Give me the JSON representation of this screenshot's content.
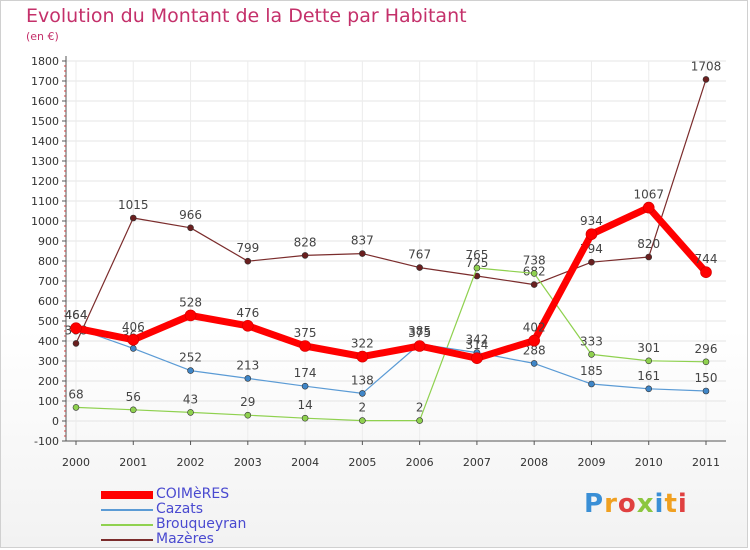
{
  "title": "Evolution du Montant de la Dette par Habitant",
  "subtitle": "(en €)",
  "brand": {
    "text": "Proxiti",
    "letter_colors": [
      "#3a8fd6",
      "#f0a020",
      "#e04040",
      "#8cc63f",
      "#3a8fd6",
      "#f0a020",
      "#e04040"
    ]
  },
  "chart_data": {
    "type": "line",
    "categories": [
      "2000",
      "2001",
      "2002",
      "2003",
      "2004",
      "2005",
      "2006",
      "2007",
      "2008",
      "2009",
      "2010",
      "2011"
    ],
    "ylim": [
      -100,
      1800
    ],
    "yticks": [
      -100,
      0,
      100,
      200,
      300,
      400,
      500,
      600,
      700,
      800,
      900,
      1000,
      1100,
      1200,
      1300,
      1400,
      1500,
      1600,
      1700,
      1800
    ],
    "grid": true,
    "series": [
      {
        "name": "Mazères",
        "color": "#7b2c2c",
        "marker": "#6a1f1f",
        "width": 1.2,
        "values": [
          388,
          1015,
          966,
          799,
          828,
          837,
          767,
          725,
          682,
          794,
          820,
          1708
        ],
        "labels": [
          "388",
          "1015",
          "966",
          "799",
          "828",
          "837",
          "767",
          "725",
          "682",
          "794",
          "820",
          "1708"
        ]
      },
      {
        "name": "Brouqueyran",
        "color": "#8fd14f",
        "marker": "#8fd14f",
        "width": 1.2,
        "values": [
          68,
          56,
          43,
          29,
          14,
          2,
          2,
          765,
          738,
          333,
          301,
          296
        ],
        "labels": [
          "68",
          "56",
          "43",
          "29",
          "14",
          "2",
          "2",
          "765",
          "738",
          "333",
          "301",
          "296"
        ]
      },
      {
        "name": "Cazats",
        "color": "#5b9bd5",
        "marker": "#3f86c8",
        "width": 1.2,
        "values": [
          464,
          363,
          252,
          213,
          174,
          138,
          385,
          342,
          288,
          185,
          161,
          150
        ],
        "labels": [
          "464",
          "363",
          "252",
          "213",
          "174",
          "138",
          "385",
          "342",
          "288",
          "185",
          "161",
          "150"
        ]
      },
      {
        "name": "COIMèRES",
        "color": "#ff0000",
        "marker": "#ff0000",
        "width": 7,
        "values": [
          464,
          406,
          528,
          476,
          375,
          322,
          375,
          314,
          402,
          934,
          1067,
          744
        ],
        "labels": [
          "464",
          "406",
          "528",
          "476",
          "375",
          "322",
          "375",
          "314",
          "402",
          "934",
          "1067",
          "744"
        ]
      }
    ],
    "legend": [
      {
        "name": "COIMèRES",
        "color": "#ff0000",
        "thickness": 8
      },
      {
        "name": "Cazats",
        "color": "#5b9bd5",
        "thickness": 2
      },
      {
        "name": "Brouqueyran",
        "color": "#8fd14f",
        "thickness": 2
      },
      {
        "name": "Mazères",
        "color": "#7b2c2c",
        "thickness": 2
      }
    ],
    "legend_position": "bottom-left"
  }
}
